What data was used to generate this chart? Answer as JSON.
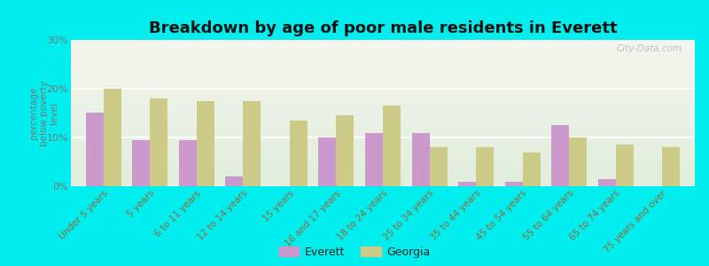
{
  "title": "Breakdown by age of poor male residents in Everett",
  "ylabel": "percentage\nbelow poverty\nlevel",
  "categories": [
    "Under 5 years",
    "5 years",
    "6 to 11 years",
    "12 to 14 years",
    "15 years",
    "16 and 17 years",
    "18 to 24 years",
    "25 to 34 years",
    "35 to 44 years",
    "45 to 54 years",
    "55 to 64 years",
    "65 to 74 years",
    "75 years and over"
  ],
  "everett": [
    15,
    9.5,
    9.5,
    2,
    0,
    10,
    11,
    11,
    1,
    1,
    12.5,
    1.5,
    0
  ],
  "georgia": [
    20,
    18,
    17.5,
    17.5,
    13.5,
    14.5,
    16.5,
    8,
    8,
    7,
    10,
    8.5,
    8
  ],
  "everett_color": "#cc99cc",
  "georgia_color": "#cccc88",
  "background_color": "#00eeee",
  "plot_bg_color": "#eef0e4",
  "ylim": [
    0,
    30
  ],
  "yticks": [
    0,
    10,
    20,
    30
  ],
  "ytick_labels": [
    "0%",
    "10%",
    "20%",
    "30%"
  ],
  "bar_width": 0.38,
  "title_fontsize": 13,
  "watermark": "City-Data.com"
}
